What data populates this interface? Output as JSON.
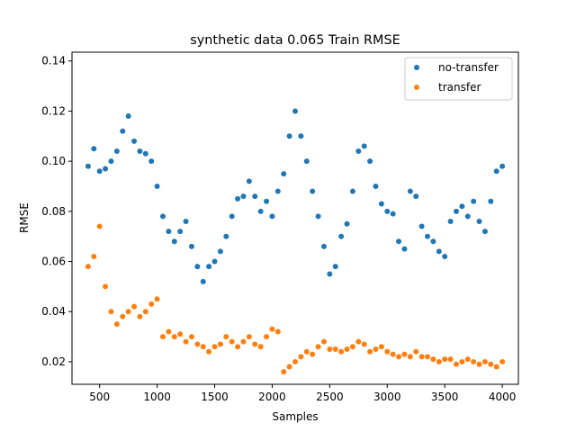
{
  "chart_data": {
    "type": "scatter",
    "title": "synthetic data 0.065 Train RMSE",
    "xlabel": "Samples",
    "ylabel": "RMSE",
    "xlim": [
      260,
      4140
    ],
    "ylim": [
      0.011,
      0.1435
    ],
    "xticks": [
      500,
      1000,
      1500,
      2000,
      2500,
      3000,
      3500,
      4000
    ],
    "yticks": [
      0.02,
      0.04,
      0.06,
      0.08,
      0.1,
      0.12,
      0.14
    ],
    "ytick_labels": [
      "0.02",
      "0.04",
      "0.06",
      "0.08",
      "0.10",
      "0.12",
      "0.14"
    ],
    "xtick_labels": [
      "500",
      "1000",
      "1500",
      "2000",
      "2500",
      "3000",
      "3500",
      "4000"
    ],
    "legend": {
      "position": "top-right",
      "entries": [
        {
          "name": "no-transfer",
          "color": "#1f77b4"
        },
        {
          "name": "transfer",
          "color": "#ff7f0e"
        }
      ]
    },
    "grid": false,
    "series": [
      {
        "name": "no-transfer",
        "color": "#1f77b4",
        "x": [
          400,
          450,
          500,
          550,
          600,
          650,
          700,
          750,
          800,
          850,
          900,
          950,
          1000,
          1050,
          1100,
          1150,
          1200,
          1250,
          1300,
          1350,
          1400,
          1450,
          1500,
          1550,
          1600,
          1650,
          1700,
          1750,
          1800,
          1850,
          1900,
          1950,
          2000,
          2050,
          2100,
          2150,
          2200,
          2250,
          2300,
          2350,
          2400,
          2450,
          2500,
          2550,
          2600,
          2650,
          2700,
          2750,
          2800,
          2850,
          2900,
          2950,
          3000,
          3050,
          3100,
          3150,
          3200,
          3250,
          3300,
          3350,
          3400,
          3450,
          3500,
          3550,
          3600,
          3650,
          3700,
          3750,
          3800,
          3850,
          3900,
          3950,
          4000
        ],
        "y": [
          0.098,
          0.105,
          0.096,
          0.097,
          0.1,
          0.104,
          0.112,
          0.118,
          0.108,
          0.104,
          0.103,
          0.1,
          0.09,
          0.078,
          0.072,
          0.068,
          0.072,
          0.076,
          0.066,
          0.058,
          0.052,
          0.058,
          0.06,
          0.064,
          0.07,
          0.078,
          0.085,
          0.086,
          0.092,
          0.086,
          0.08,
          0.084,
          0.078,
          0.088,
          0.095,
          0.11,
          0.12,
          0.11,
          0.1,
          0.088,
          0.078,
          0.066,
          0.055,
          0.058,
          0.07,
          0.075,
          0.088,
          0.104,
          0.106,
          0.1,
          0.09,
          0.083,
          0.08,
          0.079,
          0.068,
          0.065,
          0.088,
          0.086,
          0.074,
          0.07,
          0.068,
          0.064,
          0.062,
          0.076,
          0.08,
          0.082,
          0.078,
          0.084,
          0.076,
          0.072,
          0.084,
          0.096,
          0.098
        ]
      },
      {
        "name": "transfer",
        "color": "#ff7f0e",
        "x": [
          400,
          450,
          500,
          550,
          600,
          650,
          700,
          750,
          800,
          850,
          900,
          950,
          1000,
          1050,
          1100,
          1150,
          1200,
          1250,
          1300,
          1350,
          1400,
          1450,
          1500,
          1550,
          1600,
          1650,
          1700,
          1750,
          1800,
          1850,
          1900,
          1950,
          2000,
          2050,
          2100,
          2150,
          2200,
          2250,
          2300,
          2350,
          2400,
          2450,
          2500,
          2550,
          2600,
          2650,
          2700,
          2750,
          2800,
          2850,
          2900,
          2950,
          3000,
          3050,
          3100,
          3150,
          3200,
          3250,
          3300,
          3350,
          3400,
          3450,
          3500,
          3550,
          3600,
          3650,
          3700,
          3750,
          3800,
          3850,
          3900,
          3950,
          4000
        ],
        "y": [
          0.058,
          0.062,
          0.074,
          0.05,
          0.04,
          0.035,
          0.038,
          0.04,
          0.042,
          0.038,
          0.04,
          0.043,
          0.045,
          0.03,
          0.032,
          0.03,
          0.031,
          0.028,
          0.03,
          0.027,
          0.026,
          0.024,
          0.026,
          0.027,
          0.03,
          0.028,
          0.026,
          0.028,
          0.03,
          0.027,
          0.026,
          0.03,
          0.033,
          0.032,
          0.016,
          0.018,
          0.02,
          0.022,
          0.024,
          0.023,
          0.026,
          0.028,
          0.025,
          0.025,
          0.024,
          0.025,
          0.026,
          0.028,
          0.027,
          0.024,
          0.025,
          0.026,
          0.024,
          0.023,
          0.022,
          0.023,
          0.022,
          0.024,
          0.022,
          0.022,
          0.021,
          0.02,
          0.021,
          0.021,
          0.019,
          0.02,
          0.021,
          0.02,
          0.019,
          0.02,
          0.019,
          0.018,
          0.02
        ]
      }
    ]
  }
}
